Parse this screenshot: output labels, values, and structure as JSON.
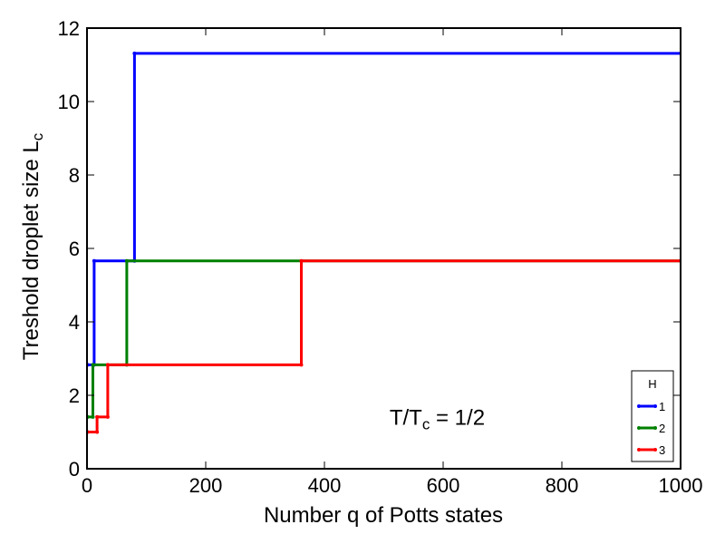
{
  "chart_data": {
    "type": "line",
    "step": true,
    "xlabel": "Number q of Potts states",
    "ylabel_main": "Treshold droplet size L",
    "ylabel_sub": "c",
    "annotation": {
      "prefix": "T/T",
      "sub": "c",
      "suffix": " = 1/2",
      "x": 590,
      "y": 1.2
    },
    "xlim": [
      0,
      1000
    ],
    "ylim": [
      0,
      12
    ],
    "xticks": [
      0,
      200,
      400,
      600,
      800,
      1000
    ],
    "yticks": [
      0,
      2,
      4,
      6,
      8,
      10,
      12
    ],
    "grid": false,
    "legend": {
      "title": "H",
      "placement": "lower-right"
    },
    "series": [
      {
        "name": "1",
        "color": "#0000ff",
        "points": [
          [
            1,
            2.83
          ],
          [
            12,
            2.83
          ],
          [
            12,
            5.66
          ],
          [
            80,
            5.66
          ],
          [
            80,
            11.31
          ],
          [
            1000,
            11.31
          ]
        ]
      },
      {
        "name": "2",
        "color": "#008000",
        "points": [
          [
            1,
            1.41
          ],
          [
            10,
            1.41
          ],
          [
            10,
            2.83
          ],
          [
            67,
            2.83
          ],
          [
            67,
            5.66
          ],
          [
            1000,
            5.66
          ]
        ]
      },
      {
        "name": "3",
        "color": "#ff0000",
        "points": [
          [
            1,
            1.0
          ],
          [
            17,
            1.0
          ],
          [
            17,
            1.41
          ],
          [
            35,
            1.41
          ],
          [
            35,
            2.83
          ],
          [
            361,
            2.83
          ],
          [
            361,
            5.66
          ],
          [
            1000,
            5.66
          ]
        ]
      }
    ]
  }
}
